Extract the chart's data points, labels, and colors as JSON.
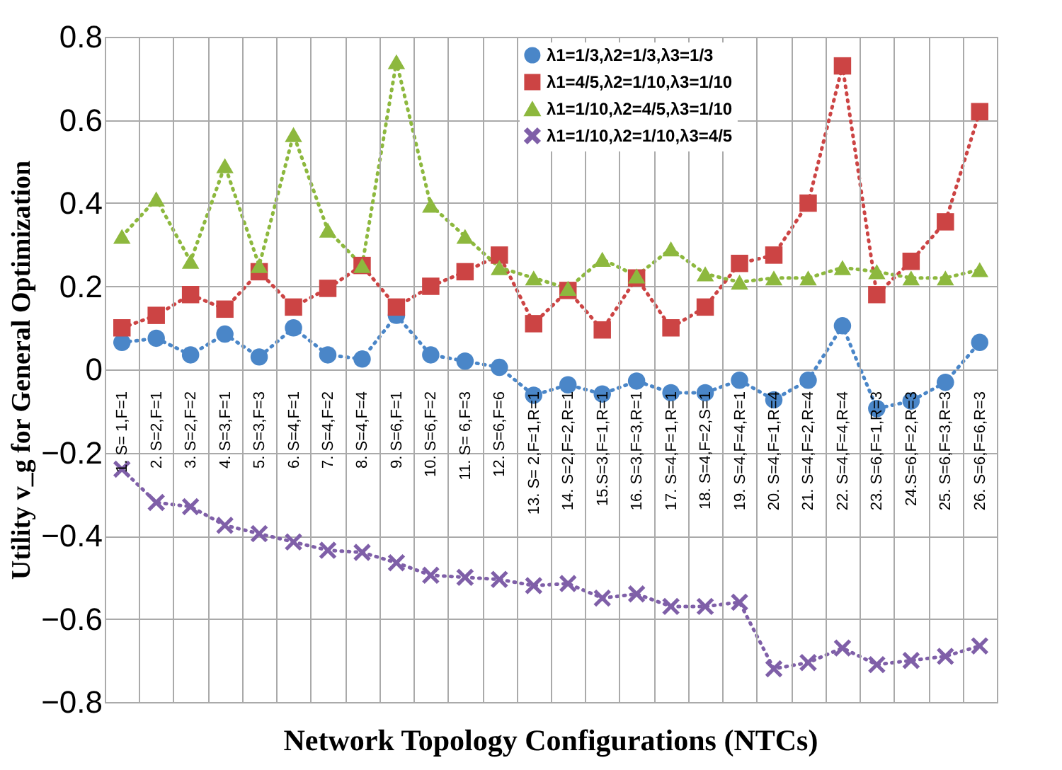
{
  "chart_data": {
    "type": "line",
    "xlabel": "Network Topology Configurations (NTCs)",
    "ylabel": "Utility v_g for General Optimization",
    "categories": [
      "1. S= 1,F=1",
      "2. S=2,F=1",
      "3. S=2,F=2",
      "4. S=3,F=1",
      "5. S=3,F=3",
      "6. S=4,F=1",
      "7. S=4,F=2",
      "8. S=4,F=4",
      "9. S=6,F=1",
      "10. S=6,F=2",
      "11. S= 6,F=3",
      "12. S=6,F=6",
      "13. S= 2,F=1,R=1",
      "14. S=2,F=2,R=1",
      "15.S=3,F=1,R=1",
      "16. S=3,F=3,R=1",
      "17. S=4,F=1,R=1",
      "18. S=4,F=2,S=1",
      "19. S=4,F=4,R=1",
      "20. S=4,F=1,R=4",
      "21. S=4,F=2,R=4",
      "22. S=4,F=4,R=4",
      "23. S=6,F=1,R=3",
      "24.S=6,F=2,R=3",
      "25. S=6,F=3,R=3",
      "26. S=6,F=6,R=3"
    ],
    "series": [
      {
        "name": "λ1=1/3,λ2=1/3,λ3=1/3",
        "color": "#4a86c8",
        "marker": "circle",
        "values": [
          0.065,
          0.075,
          0.035,
          0.085,
          0.03,
          0.1,
          0.035,
          0.025,
          0.13,
          0.035,
          0.02,
          0.005,
          -0.062,
          -0.037,
          -0.059,
          -0.028,
          -0.056,
          -0.056,
          -0.026,
          -0.073,
          -0.026,
          0.105,
          -0.094,
          -0.076,
          -0.031,
          0.065
        ]
      },
      {
        "name": "λ1=4/5,λ2=1/10,λ3=1/10",
        "color": "#cc4444",
        "marker": "square",
        "values": [
          0.1,
          0.13,
          0.18,
          0.145,
          0.235,
          0.15,
          0.195,
          0.25,
          0.15,
          0.2,
          0.235,
          0.275,
          0.11,
          0.19,
          0.095,
          0.22,
          0.1,
          0.15,
          0.255,
          0.275,
          0.4,
          0.73,
          0.18,
          0.26,
          0.355,
          0.62
        ]
      },
      {
        "name": "λ1=1/10,λ2=4/5,λ3=1/10",
        "color": "#8db83e",
        "marker": "triangle",
        "values": [
          0.32,
          0.41,
          0.26,
          0.49,
          0.25,
          0.565,
          0.335,
          0.25,
          0.74,
          0.395,
          0.32,
          0.245,
          0.22,
          0.195,
          0.265,
          0.225,
          0.29,
          0.23,
          0.21,
          0.22,
          0.22,
          0.245,
          0.235,
          0.22,
          0.22,
          0.24
        ]
      },
      {
        "name": "λ1=1/10,λ2=1/10,λ3=4/5",
        "color": "#7f5fa8",
        "marker": "cross",
        "values": [
          -0.24,
          -0.32,
          -0.33,
          -0.375,
          -0.395,
          -0.415,
          -0.435,
          -0.44,
          -0.465,
          -0.495,
          -0.5,
          -0.505,
          -0.52,
          -0.515,
          -0.55,
          -0.54,
          -0.57,
          -0.57,
          -0.56,
          -0.72,
          -0.705,
          -0.67,
          -0.71,
          -0.7,
          -0.69,
          -0.665
        ]
      }
    ],
    "ylim": [
      -0.8,
      0.8
    ],
    "yticks": [
      -0.8,
      -0.6,
      -0.4,
      -0.2,
      0,
      0.2,
      0.4,
      0.6,
      0.8
    ],
    "grid": true,
    "legend": "top right",
    "line_style": "dotted"
  }
}
